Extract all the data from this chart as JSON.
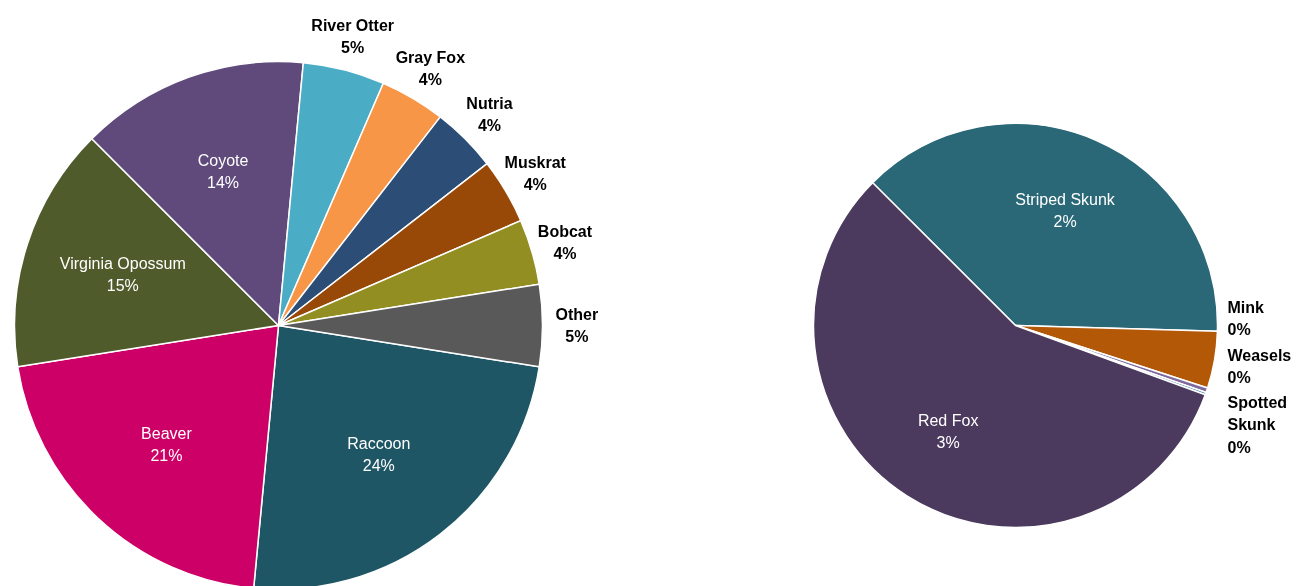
{
  "chart_data": [
    {
      "type": "pie",
      "categories": [
        "Raccoon",
        "Beaver",
        "Virginia Opossum",
        "Coyote",
        "River Otter",
        "Gray Fox",
        "Nutria",
        "Muskrat",
        "Bobcat",
        "Other"
      ],
      "values": [
        24,
        21,
        15,
        14,
        5,
        4,
        4,
        4,
        4,
        5
      ],
      "colors": [
        "#1f5666",
        "#cc0066",
        "#4f5b2b",
        "#5f4a7b",
        "#4bacc6",
        "#f79646",
        "#2c4d75",
        "#984807",
        "#938e22",
        "#595959"
      ],
      "value_labels": [
        "24%",
        "21%",
        "15%",
        "14%",
        "5%",
        "4%",
        "4%",
        "4%",
        "4%",
        "5%"
      ]
    },
    {
      "type": "pie",
      "categories": [
        "Striped Skunk",
        "Mink",
        "Weasels",
        "Spotted Skunk",
        "Red Fox"
      ],
      "values": [
        2,
        0.24,
        0.02,
        0.01,
        3
      ],
      "colors": [
        "#2a6878",
        "#b35806",
        "#7f6a9f",
        "#3b7fa0",
        "#4b3a5e"
      ],
      "value_labels": [
        "2%",
        "0%",
        "0%",
        "0%",
        "3%"
      ]
    }
  ]
}
